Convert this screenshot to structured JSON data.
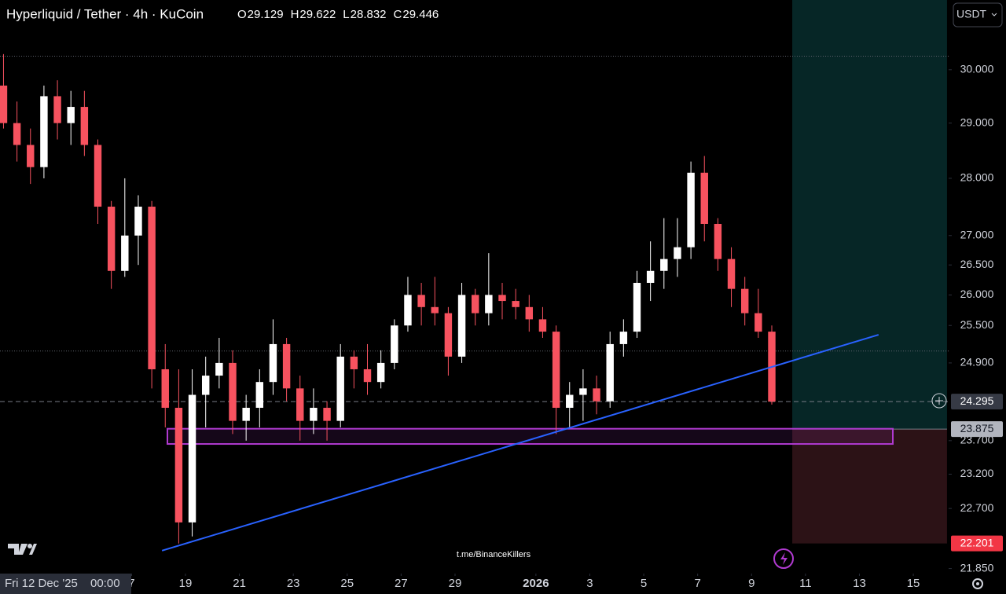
{
  "chart_data": {
    "type": "candlestick",
    "title": "Hyperliquid / Tether · 4h · KuCoin",
    "ohlc": [
      {
        "label": "O",
        "value": 29.129
      },
      {
        "label": "H",
        "value": 29.622
      },
      {
        "label": "L",
        "value": 28.832
      },
      {
        "label": "C",
        "value": 29.446
      }
    ],
    "currency": "USDT",
    "x": [
      12.25,
      12.75,
      13.25,
      13.75,
      14.25,
      14.75,
      15.25,
      15.75,
      16.25,
      16.75,
      17.25,
      17.75,
      18.25,
      18.75,
      19.25,
      19.75,
      20.25,
      20.75,
      21.25,
      21.75,
      22.25,
      22.75,
      23.25,
      23.75,
      24.25,
      24.75,
      25.25,
      25.75,
      26.25,
      26.75,
      27.25,
      27.75,
      28.25,
      28.75,
      29.25,
      29.75,
      30.25,
      30.75,
      31.25,
      31.75,
      32.25,
      32.75,
      33.25,
      33.75,
      34.25,
      34.75,
      35.25,
      35.75,
      36.25,
      36.75,
      37.25,
      37.75,
      38.25,
      38.75,
      39.25,
      39.75,
      40.25,
      40.75
    ],
    "open": [
      29.7,
      29.0,
      28.6,
      28.2,
      29.5,
      29.0,
      29.3,
      28.6,
      27.5,
      26.4,
      27.0,
      27.5,
      24.8,
      24.2,
      22.5,
      24.4,
      24.7,
      24.9,
      24.0,
      24.2,
      24.6,
      25.2,
      24.5,
      24.0,
      24.2,
      24.0,
      25.0,
      24.8,
      24.6,
      24.9,
      25.5,
      26.0,
      25.8,
      25.7,
      25.0,
      26.0,
      25.7,
      26.0,
      25.9,
      25.8,
      25.6,
      25.4,
      24.2,
      24.4,
      24.5,
      24.3,
      25.2,
      25.4,
      26.2,
      26.4,
      26.6,
      26.8,
      28.1,
      27.2,
      26.6,
      26.1,
      25.7,
      25.4
    ],
    "high": [
      30.3,
      29.4,
      28.9,
      29.7,
      29.8,
      29.6,
      29.6,
      28.7,
      27.6,
      28.0,
      27.7,
      27.6,
      25.2,
      24.8,
      24.8,
      25.0,
      25.3,
      25.1,
      24.4,
      24.8,
      25.6,
      25.3,
      24.7,
      24.5,
      24.3,
      25.2,
      25.1,
      25.2,
      25.1,
      25.6,
      26.3,
      26.2,
      26.3,
      25.8,
      26.2,
      26.1,
      26.7,
      26.2,
      26.1,
      26.0,
      25.8,
      25.5,
      24.6,
      24.8,
      24.7,
      25.4,
      25.6,
      26.4,
      26.9,
      27.3,
      27.3,
      28.3,
      28.4,
      27.3,
      26.8,
      26.3,
      26.1,
      25.5
    ],
    "low": [
      28.9,
      28.3,
      27.9,
      28.0,
      28.7,
      28.6,
      28.4,
      27.2,
      26.1,
      26.3,
      26.5,
      24.5,
      23.9,
      22.2,
      22.3,
      23.9,
      24.5,
      23.8,
      23.7,
      23.9,
      24.4,
      24.3,
      23.7,
      23.8,
      23.7,
      23.9,
      24.5,
      24.4,
      24.5,
      24.8,
      25.4,
      25.5,
      25.5,
      24.7,
      24.9,
      25.5,
      25.5,
      25.6,
      25.6,
      25.4,
      25.3,
      23.8,
      23.9,
      24.0,
      24.1,
      24.2,
      25.0,
      25.3,
      25.9,
      26.1,
      26.3,
      26.6,
      26.9,
      26.4,
      25.8,
      25.5,
      25.3,
      24.25
    ],
    "close": [
      29.0,
      28.6,
      28.2,
      29.5,
      29.0,
      29.3,
      28.6,
      27.5,
      26.4,
      27.0,
      27.5,
      24.8,
      24.2,
      22.5,
      24.4,
      24.7,
      24.9,
      24.0,
      24.2,
      24.6,
      25.2,
      24.5,
      24.0,
      24.2,
      24.0,
      25.0,
      24.8,
      24.6,
      24.9,
      25.5,
      26.0,
      25.8,
      25.7,
      25.0,
      26.0,
      25.7,
      26.0,
      25.9,
      25.8,
      25.6,
      25.4,
      24.2,
      24.4,
      24.5,
      24.3,
      25.2,
      25.4,
      26.2,
      26.4,
      26.6,
      26.8,
      28.1,
      27.2,
      26.6,
      26.1,
      25.7,
      25.4,
      24.295
    ],
    "up_color": "#ffffff",
    "down_color": "#f7525f",
    "log_scale": true,
    "ylim": [
      21.78,
      31.36
    ],
    "yticks": [
      {
        "value": 30,
        "label": "30.000"
      },
      {
        "value": 29,
        "label": "29.000"
      },
      {
        "value": 28,
        "label": "28.000"
      },
      {
        "value": 27,
        "label": "27.000"
      },
      {
        "value": 26.5,
        "label": "26.500"
      },
      {
        "value": 26,
        "label": "26.000"
      },
      {
        "value": 25.5,
        "label": "25.500"
      },
      {
        "value": 24.9,
        "label": "24.900"
      },
      {
        "value": 23.7,
        "label": "23.700"
      },
      {
        "value": 23.2,
        "label": "23.200"
      },
      {
        "value": 22.7,
        "label": "22.700"
      },
      {
        "value": 21.85,
        "label": "21.850"
      }
    ],
    "xlim": [
      12.12,
      47.31
    ],
    "xticks": [
      {
        "value": 17,
        "label": "7"
      },
      19,
      21,
      23,
      25,
      27,
      29,
      {
        "value": 32,
        "label": "2026"
      },
      {
        "value": 34,
        "label": "3"
      },
      {
        "value": 36,
        "label": "5"
      },
      {
        "value": 38,
        "label": "7"
      },
      {
        "value": 40,
        "label": "9"
      },
      {
        "value": 42,
        "label": "11"
      },
      {
        "value": 44,
        "label": "13"
      },
      {
        "value": 46,
        "label": "15"
      }
    ],
    "last_price": {
      "value": 24.295,
      "label": "24.295"
    },
    "hlines": [
      30.26,
      25.09
    ],
    "trendline": {
      "x": [
        18.13,
        44.71
      ],
      "y": [
        22.1,
        25.35
      ],
      "color": "#2962ff"
    },
    "zone": {
      "x": [
        18.33,
        45.24
      ],
      "y": [
        23.65,
        23.88
      ],
      "color": "#b03ad0"
    },
    "position": {
      "x": [
        41.51,
        47.25
      ],
      "entry": {
        "value": 23.875,
        "label": "23.875"
      },
      "stop": {
        "value": 22.201,
        "label": "22.201"
      }
    },
    "crosshair_date": "Fri 12 Dec '25",
    "crosshair_time": "00:00",
    "watermark": "t.me/BinanceKillers"
  }
}
